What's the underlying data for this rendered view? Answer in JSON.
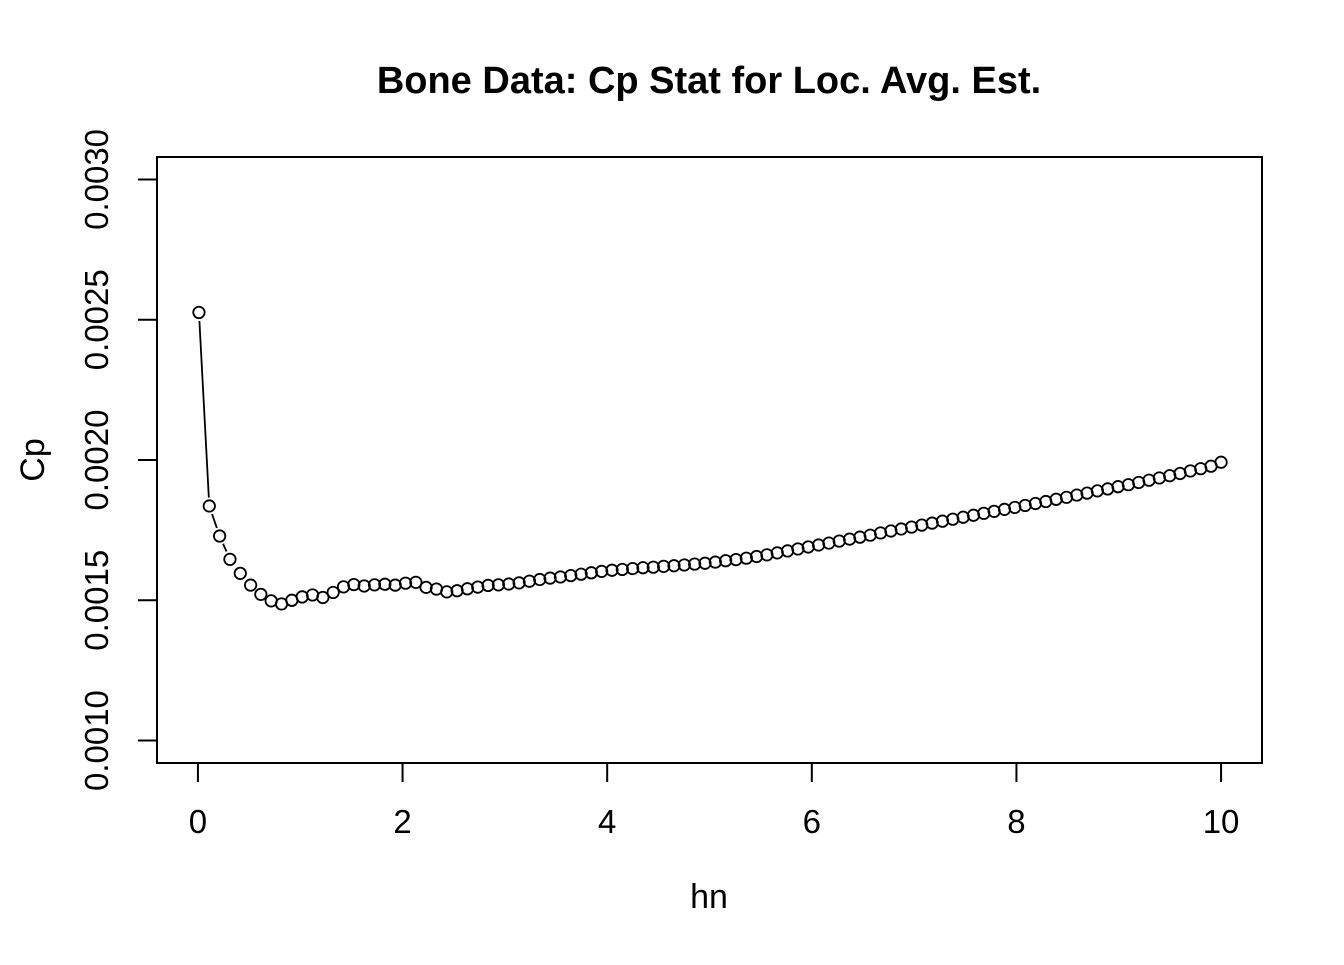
{
  "page": {
    "background_color": "#ffffff",
    "foreground_color": "#000000"
  },
  "chart_data": {
    "type": "scatter",
    "style": "r-base-type-b-open-circles-with-line",
    "title": "Bone Data: Cp Stat for Loc. Avg. Est.",
    "xlabel": "hn",
    "ylabel": "Cp",
    "xlim": [
      0,
      10
    ],
    "ylim": [
      0.001,
      0.003
    ],
    "axis_expansion": 0.04,
    "grid": false,
    "legend": null,
    "x_ticks": [
      0,
      2,
      4,
      6,
      8,
      10
    ],
    "x_tick_labels": [
      "0",
      "2",
      "4",
      "6",
      "8",
      "10"
    ],
    "y_ticks": [
      0.001,
      0.0015,
      0.002,
      0.0025,
      0.003
    ],
    "y_tick_labels": [
      "0.0010",
      "0.0015",
      "0.0020",
      "0.0025",
      "0.0030"
    ],
    "marker": "open-circle",
    "marker_color": "#000000",
    "line_color": "#000000",
    "x": [
      0.01,
      0.111,
      0.212,
      0.313,
      0.414,
      0.515,
      0.615,
      0.716,
      0.817,
      0.918,
      1.019,
      1.12,
      1.221,
      1.322,
      1.423,
      1.524,
      1.625,
      1.726,
      1.827,
      1.928,
      2.029,
      2.13,
      2.23,
      2.331,
      2.432,
      2.533,
      2.634,
      2.735,
      2.836,
      2.937,
      3.038,
      3.139,
      3.24,
      3.341,
      3.442,
      3.543,
      3.644,
      3.745,
      3.845,
      3.946,
      4.047,
      4.148,
      4.249,
      4.35,
      4.451,
      4.552,
      4.653,
      4.754,
      4.855,
      4.956,
      5.057,
      5.158,
      5.259,
      5.36,
      5.46,
      5.561,
      5.662,
      5.763,
      5.864,
      5.965,
      6.066,
      6.167,
      6.268,
      6.369,
      6.47,
      6.571,
      6.672,
      6.773,
      6.874,
      6.975,
      7.075,
      7.176,
      7.277,
      7.378,
      7.479,
      7.58,
      7.681,
      7.782,
      7.883,
      7.984,
      8.085,
      8.186,
      8.287,
      8.388,
      8.489,
      8.59,
      8.69,
      8.791,
      8.892,
      8.993,
      9.094,
      9.195,
      9.296,
      9.397,
      9.498,
      9.599,
      9.7,
      9.801,
      9.902,
      10
    ],
    "y": [
      0.002526,
      0.001836,
      0.001729,
      0.001646,
      0.001596,
      0.001554,
      0.001521,
      0.001498,
      0.001487,
      0.0015,
      0.001512,
      0.001519,
      0.00151,
      0.001528,
      0.001548,
      0.001556,
      0.001551,
      0.001555,
      0.001557,
      0.001554,
      0.001561,
      0.001564,
      0.001546,
      0.00154,
      0.00153,
      0.001534,
      0.001541,
      0.001547,
      0.001553,
      0.001555,
      0.001558,
      0.001562,
      0.001568,
      0.001574,
      0.001579,
      0.001583,
      0.001588,
      0.001593,
      0.001598,
      0.001603,
      0.001607,
      0.00161,
      0.001613,
      0.001616,
      0.001618,
      0.001621,
      0.001623,
      0.001626,
      0.001629,
      0.001632,
      0.001636,
      0.001641,
      0.001645,
      0.00165,
      0.001656,
      0.001662,
      0.001669,
      0.001676,
      0.001683,
      0.00169,
      0.001697,
      0.001704,
      0.001711,
      0.001718,
      0.001725,
      0.001732,
      0.00174,
      0.001747,
      0.001754,
      0.001761,
      0.001768,
      0.001775,
      0.001782,
      0.001789,
      0.001796,
      0.001803,
      0.00181,
      0.001817,
      0.001824,
      0.001831,
      0.001838,
      0.001845,
      0.001852,
      0.00186,
      0.001867,
      0.001875,
      0.001882,
      0.00189,
      0.001897,
      0.001905,
      0.001912,
      0.00192,
      0.001928,
      0.001936,
      0.001944,
      0.001952,
      0.001961,
      0.001969,
      0.001978,
      0.001992
    ]
  }
}
